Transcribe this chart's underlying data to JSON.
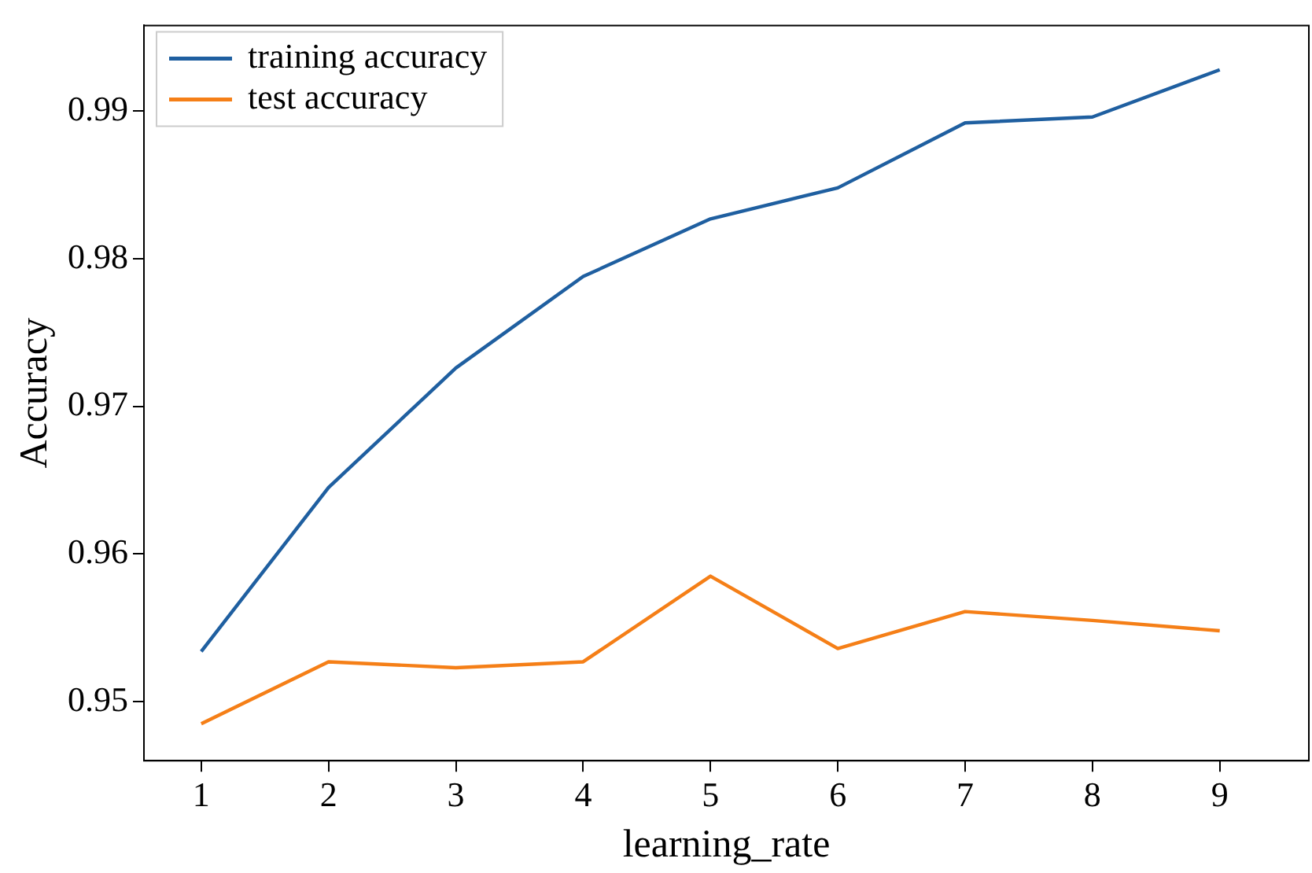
{
  "chart_data": {
    "type": "line",
    "xlabel": "learning_rate",
    "ylabel": "Accuracy",
    "x": [
      1,
      2,
      3,
      4,
      5,
      6,
      7,
      8,
      9
    ],
    "series": [
      {
        "name": "training accuracy",
        "color": "#1f5fa0",
        "values": [
          0.9534,
          0.9645,
          0.9726,
          0.9788,
          0.9827,
          0.9848,
          0.9892,
          0.9896,
          0.9928
        ]
      },
      {
        "name": "test accuracy",
        "color": "#f57f17",
        "values": [
          0.9485,
          0.9527,
          0.9523,
          0.9527,
          0.9585,
          0.9536,
          0.9561,
          0.9555,
          0.9548
        ]
      }
    ],
    "xlim": [
      0.55,
      9.7
    ],
    "xticks": [
      1,
      2,
      3,
      4,
      5,
      6,
      7,
      8,
      9
    ],
    "ylim": [
      0.946,
      0.9958
    ],
    "yticks": [
      0.95,
      0.96,
      0.97,
      0.98,
      0.99
    ],
    "grid": false,
    "legend": "top left",
    "marker": "none",
    "line_style": "solid"
  }
}
